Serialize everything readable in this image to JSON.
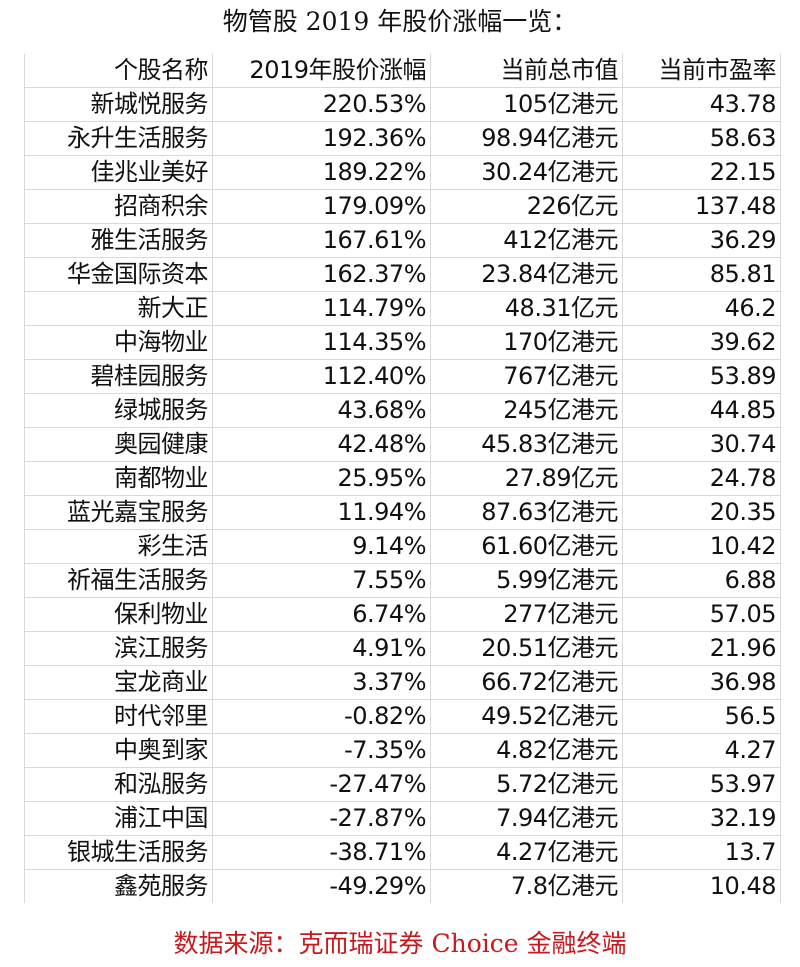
{
  "title": "物管股 2019 年股价涨幅一览：",
  "table": {
    "headers": [
      "个股名称",
      "2019年股价涨幅",
      "当前总市值",
      "当前市盈率"
    ],
    "rows": [
      [
        "新城悦服务",
        "220.53%",
        "105亿港元",
        "43.78"
      ],
      [
        "永升生活服务",
        "192.36%",
        "98.94亿港元",
        "58.63"
      ],
      [
        "佳兆业美好",
        "189.22%",
        "30.24亿港元",
        "22.15"
      ],
      [
        "招商积余",
        "179.09%",
        "226亿元",
        "137.48"
      ],
      [
        "雅生活服务",
        "167.61%",
        "412亿港元",
        "36.29"
      ],
      [
        "华金国际资本",
        "162.37%",
        "23.84亿港元",
        "85.81"
      ],
      [
        "新大正",
        "114.79%",
        "48.31亿元",
        "46.2"
      ],
      [
        "中海物业",
        "114.35%",
        "170亿港元",
        "39.62"
      ],
      [
        "碧桂园服务",
        "112.40%",
        "767亿港元",
        "53.89"
      ],
      [
        "绿城服务",
        "43.68%",
        "245亿港元",
        "44.85"
      ],
      [
        "奥园健康",
        "42.48%",
        "45.83亿港元",
        "30.74"
      ],
      [
        "南都物业",
        "25.95%",
        "27.89亿元",
        "24.78"
      ],
      [
        "蓝光嘉宝服务",
        "11.94%",
        "87.63亿港元",
        "20.35"
      ],
      [
        "彩生活",
        "9.14%",
        "61.60亿港元",
        "10.42"
      ],
      [
        "祈福生活服务",
        "7.55%",
        "5.99亿港元",
        "6.88"
      ],
      [
        "保利物业",
        "6.74%",
        "277亿港元",
        "57.05"
      ],
      [
        "滨江服务",
        "4.91%",
        "20.51亿港元",
        "21.96"
      ],
      [
        "宝龙商业",
        "3.37%",
        "66.72亿港元",
        "36.98"
      ],
      [
        "时代邻里",
        "-0.82%",
        "49.52亿港元",
        "56.5"
      ],
      [
        "中奥到家",
        "-7.35%",
        "4.82亿港元",
        "4.27"
      ],
      [
        "和泓服务",
        "-27.47%",
        "5.72亿港元",
        "53.97"
      ],
      [
        "浦江中国",
        "-27.87%",
        "7.94亿港元",
        "32.19"
      ],
      [
        "银城生活服务",
        "-38.71%",
        "4.27亿港元",
        "13.7"
      ],
      [
        "鑫苑服务",
        "-49.29%",
        "7.8亿港元",
        "10.48"
      ]
    ]
  },
  "footer": "数据来源：克而瑞证券   Choice 金融终端",
  "colors": {
    "footer_text": "#c8191e",
    "grid": "#d9d9d9"
  }
}
